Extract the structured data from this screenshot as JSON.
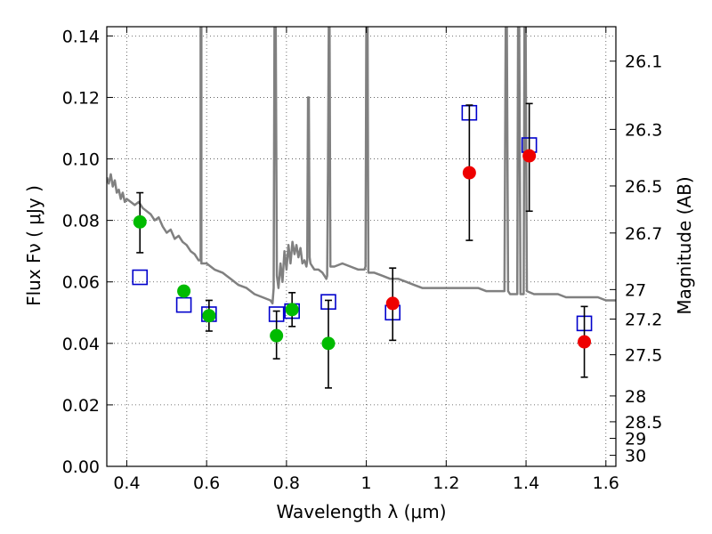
{
  "chart_data": {
    "type": "scatter",
    "xlabel": "Wavelength  λ (μm)",
    "ylabel": "Flux  Fν  ( μJy )",
    "y2label": "Magnitude (AB)",
    "xlim": [
      0.35,
      1.625
    ],
    "ylim": [
      0.0,
      0.143
    ],
    "grid": true,
    "x_ticks": [
      "0.4",
      "0.6",
      "0.8",
      "1",
      "1.2",
      "1.4",
      "1.6"
    ],
    "x_tick_values": [
      0.4,
      0.6,
      0.8,
      1.0,
      1.2,
      1.4,
      1.6
    ],
    "y_ticks": [
      "0.00",
      "0.02",
      "0.04",
      "0.06",
      "0.08",
      "0.10",
      "0.12",
      "0.14"
    ],
    "y_tick_values": [
      0.0,
      0.02,
      0.04,
      0.06,
      0.08,
      0.1,
      0.12,
      0.14
    ],
    "mag_ticks": [
      {
        "label": "26.1",
        "flux": 0.1318
      },
      {
        "label": "26.3",
        "flux": 0.1096
      },
      {
        "label": "26.5",
        "flux": 0.0912
      },
      {
        "label": "26.7",
        "flux": 0.0759
      },
      {
        "label": "27",
        "flux": 0.0575
      },
      {
        "label": "27.2",
        "flux": 0.0479
      },
      {
        "label": "27.5",
        "flux": 0.0363
      },
      {
        "label": "28",
        "flux": 0.0229
      },
      {
        "label": "28.5",
        "flux": 0.0145
      },
      {
        "label": "29",
        "flux": 0.0091
      },
      {
        "label": "30",
        "flux": 0.0036
      }
    ],
    "series": [
      {
        "name": "model spectrum",
        "kind": "line",
        "color": "#808080",
        "points": [
          [
            0.35,
            0.094
          ],
          [
            0.355,
            0.092
          ],
          [
            0.36,
            0.095
          ],
          [
            0.365,
            0.091
          ],
          [
            0.37,
            0.093
          ],
          [
            0.375,
            0.089
          ],
          [
            0.38,
            0.09
          ],
          [
            0.385,
            0.087
          ],
          [
            0.39,
            0.089
          ],
          [
            0.395,
            0.086
          ],
          [
            0.4,
            0.087
          ],
          [
            0.41,
            0.086
          ],
          [
            0.42,
            0.085
          ],
          [
            0.43,
            0.086
          ],
          [
            0.44,
            0.084
          ],
          [
            0.45,
            0.083
          ],
          [
            0.46,
            0.082
          ],
          [
            0.47,
            0.08
          ],
          [
            0.48,
            0.081
          ],
          [
            0.49,
            0.078
          ],
          [
            0.5,
            0.076
          ],
          [
            0.51,
            0.077
          ],
          [
            0.52,
            0.074
          ],
          [
            0.53,
            0.075
          ],
          [
            0.54,
            0.073
          ],
          [
            0.55,
            0.072
          ],
          [
            0.56,
            0.07
          ],
          [
            0.57,
            0.069
          ],
          [
            0.575,
            0.068
          ],
          [
            0.58,
            0.067
          ],
          [
            0.585,
            0.067
          ],
          [
            0.585,
            0.143
          ],
          [
            0.587,
            0.143
          ],
          [
            0.587,
            0.066
          ],
          [
            0.6,
            0.066
          ],
          [
            0.62,
            0.064
          ],
          [
            0.64,
            0.063
          ],
          [
            0.66,
            0.061
          ],
          [
            0.68,
            0.059
          ],
          [
            0.7,
            0.058
          ],
          [
            0.72,
            0.056
          ],
          [
            0.74,
            0.055
          ],
          [
            0.76,
            0.054
          ],
          [
            0.765,
            0.053
          ],
          [
            0.768,
            0.058
          ],
          [
            0.77,
            0.143
          ],
          [
            0.773,
            0.143
          ],
          [
            0.776,
            0.062
          ],
          [
            0.78,
            0.058
          ],
          [
            0.785,
            0.066
          ],
          [
            0.79,
            0.06
          ],
          [
            0.795,
            0.07
          ],
          [
            0.8,
            0.064
          ],
          [
            0.805,
            0.072
          ],
          [
            0.81,
            0.066
          ],
          [
            0.815,
            0.073
          ],
          [
            0.82,
            0.069
          ],
          [
            0.825,
            0.072
          ],
          [
            0.83,
            0.068
          ],
          [
            0.835,
            0.071
          ],
          [
            0.84,
            0.066
          ],
          [
            0.845,
            0.067
          ],
          [
            0.85,
            0.065
          ],
          [
            0.852,
            0.067
          ],
          [
            0.854,
            0.12
          ],
          [
            0.856,
            0.12
          ],
          [
            0.858,
            0.068
          ],
          [
            0.86,
            0.066
          ],
          [
            0.865,
            0.065
          ],
          [
            0.87,
            0.064
          ],
          [
            0.88,
            0.064
          ],
          [
            0.89,
            0.063
          ],
          [
            0.895,
            0.062
          ],
          [
            0.9,
            0.061
          ],
          [
            0.902,
            0.062
          ],
          [
            0.904,
            0.096
          ],
          [
            0.906,
            0.143
          ],
          [
            0.908,
            0.143
          ],
          [
            0.91,
            0.065
          ],
          [
            0.92,
            0.065
          ],
          [
            0.94,
            0.066
          ],
          [
            0.96,
            0.065
          ],
          [
            0.98,
            0.064
          ],
          [
            0.995,
            0.064
          ],
          [
            0.998,
            0.065
          ],
          [
            1.0,
            0.143
          ],
          [
            1.003,
            0.143
          ],
          [
            1.005,
            0.063
          ],
          [
            1.02,
            0.063
          ],
          [
            1.04,
            0.062
          ],
          [
            1.06,
            0.061
          ],
          [
            1.08,
            0.061
          ],
          [
            1.1,
            0.06
          ],
          [
            1.12,
            0.059
          ],
          [
            1.14,
            0.058
          ],
          [
            1.16,
            0.058
          ],
          [
            1.18,
            0.058
          ],
          [
            1.2,
            0.058
          ],
          [
            1.22,
            0.058
          ],
          [
            1.24,
            0.058
          ],
          [
            1.26,
            0.058
          ],
          [
            1.28,
            0.058
          ],
          [
            1.3,
            0.057
          ],
          [
            1.32,
            0.057
          ],
          [
            1.34,
            0.057
          ],
          [
            1.346,
            0.057
          ],
          [
            1.349,
            0.143
          ],
          [
            1.352,
            0.143
          ],
          [
            1.355,
            0.057
          ],
          [
            1.36,
            0.056
          ],
          [
            1.37,
            0.056
          ],
          [
            1.378,
            0.056
          ],
          [
            1.38,
            0.143
          ],
          [
            1.383,
            0.143
          ],
          [
            1.386,
            0.056
          ],
          [
            1.39,
            0.056
          ],
          [
            1.394,
            0.056
          ],
          [
            1.396,
            0.143
          ],
          [
            1.399,
            0.143
          ],
          [
            1.402,
            0.057
          ],
          [
            1.42,
            0.056
          ],
          [
            1.44,
            0.056
          ],
          [
            1.46,
            0.056
          ],
          [
            1.48,
            0.056
          ],
          [
            1.5,
            0.055
          ],
          [
            1.52,
            0.055
          ],
          [
            1.54,
            0.055
          ],
          [
            1.56,
            0.055
          ],
          [
            1.58,
            0.055
          ],
          [
            1.6,
            0.054
          ],
          [
            1.625,
            0.054
          ]
        ]
      },
      {
        "name": "model photometry",
        "kind": "open-square",
        "color": "#0000cc",
        "x": [
          0.433,
          0.543,
          0.606,
          0.775,
          0.814,
          0.905,
          1.066,
          1.258,
          1.408,
          1.546
        ],
        "y": [
          0.0615,
          0.0525,
          0.0495,
          0.0495,
          0.0505,
          0.0535,
          0.05,
          0.115,
          0.1045,
          0.0465
        ]
      },
      {
        "name": "observed (green)",
        "kind": "filled-circle",
        "color": "#00bb00",
        "x": [
          0.433,
          0.543,
          0.606,
          0.775,
          0.814,
          0.905
        ],
        "y": [
          0.0795,
          0.057,
          0.049,
          0.0425,
          0.051,
          0.04
        ],
        "yerr_low": [
          0.0695,
          null,
          0.044,
          0.035,
          0.0455,
          0.0255
        ],
        "yerr_high": [
          0.089,
          null,
          0.054,
          0.0505,
          0.0565,
          0.054
        ]
      },
      {
        "name": "observed (red)",
        "kind": "filled-circle",
        "color": "#ee0000",
        "x": [
          1.066,
          1.258,
          1.408,
          1.546
        ],
        "y": [
          0.053,
          0.0955,
          0.101,
          0.0405
        ],
        "yerr_low": [
          0.041,
          0.0735,
          0.083,
          0.029
        ],
        "yerr_high": [
          0.0645,
          0.1175,
          0.118,
          0.052
        ]
      }
    ]
  }
}
